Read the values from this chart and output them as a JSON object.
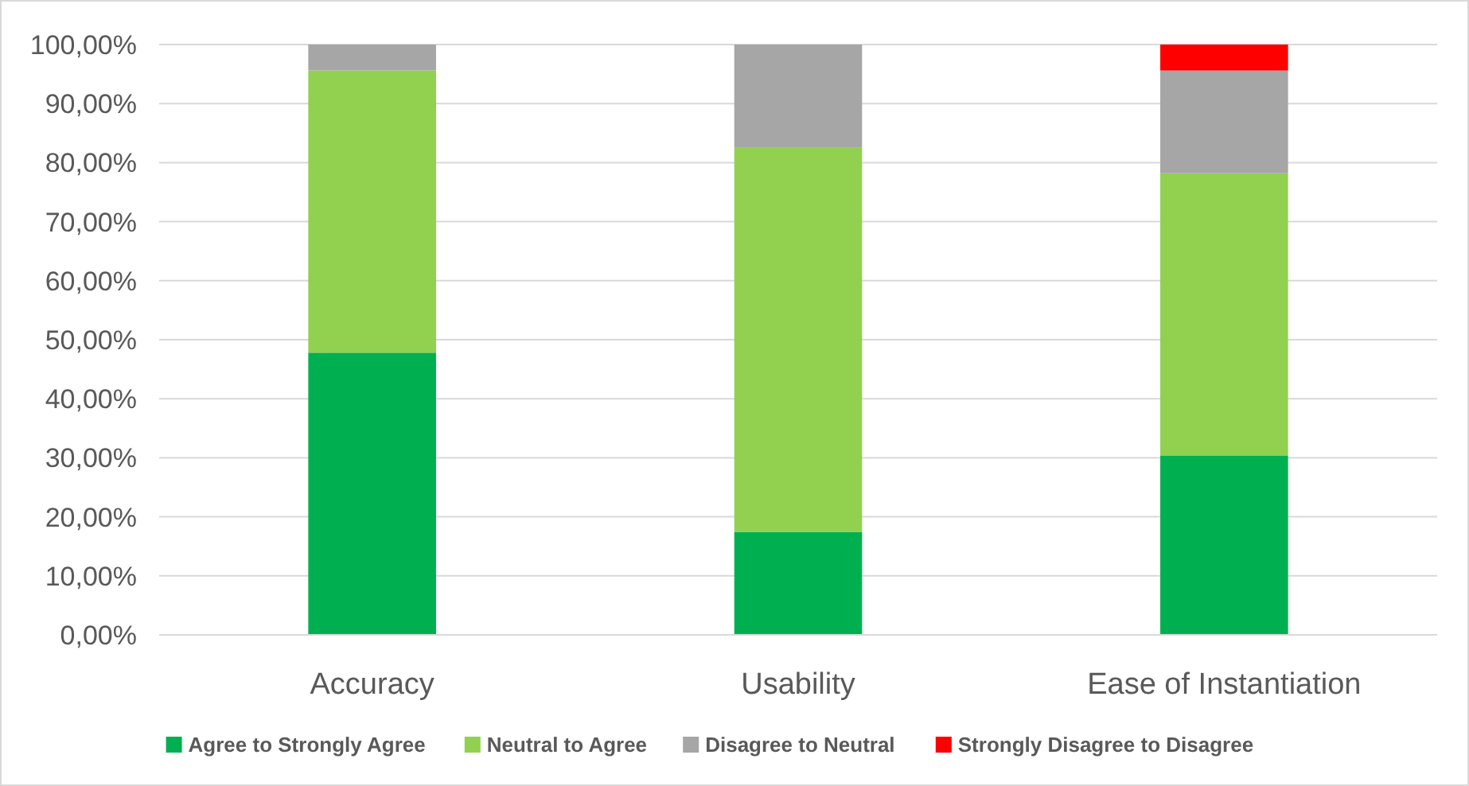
{
  "chart_data": {
    "type": "bar",
    "stacked": true,
    "categories": [
      "Accuracy",
      "Usability",
      "Ease of Instantiation"
    ],
    "series": [
      {
        "name": "Agree to Strongly Agree",
        "color": "#00b050",
        "values": [
          47.8,
          17.4,
          30.4
        ]
      },
      {
        "name": "Neutral to Agree",
        "color": "#92d050",
        "values": [
          47.8,
          65.2,
          47.8
        ]
      },
      {
        "name": "Disagree to Neutral",
        "color": "#a6a6a6",
        "values": [
          4.4,
          17.4,
          17.4
        ]
      },
      {
        "name": "Strongly Disagree to Disagree",
        "color": "#ff0000",
        "values": [
          0,
          0,
          4.4
        ]
      }
    ],
    "ylim": [
      0,
      100
    ],
    "yticks": [
      {
        "value": 0,
        "label": "0,00%"
      },
      {
        "value": 10,
        "label": "10,00%"
      },
      {
        "value": 20,
        "label": "20,00%"
      },
      {
        "value": 30,
        "label": "30,00%"
      },
      {
        "value": 40,
        "label": "40,00%"
      },
      {
        "value": 50,
        "label": "50,00%"
      },
      {
        "value": 60,
        "label": "60,00%"
      },
      {
        "value": 70,
        "label": "70,00%"
      },
      {
        "value": 80,
        "label": "80,00%"
      },
      {
        "value": 90,
        "label": "90,00%"
      },
      {
        "value": 100,
        "label": "100,00%"
      }
    ],
    "grid": "y",
    "legend": "bottom"
  }
}
